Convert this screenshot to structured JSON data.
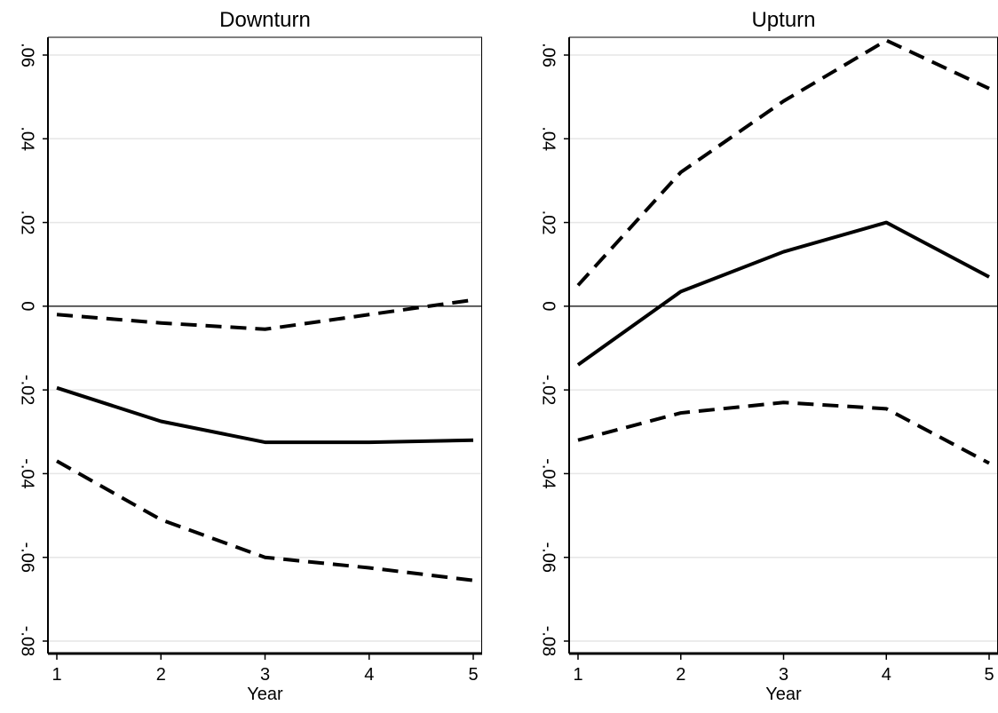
{
  "chart_data": [
    {
      "type": "line",
      "title": "Downturn",
      "xlabel": "",
      "ylabel": "",
      "x": [
        1,
        2,
        3,
        4,
        5
      ],
      "xlim": [
        1,
        5
      ],
      "ylim": [
        -0.08,
        0.06
      ],
      "x_ticks": [
        "1",
        "2",
        "3",
        "4",
        "5"
      ],
      "y_ticks": [
        -0.08,
        -0.06,
        -0.04,
        -0.02,
        0,
        0.02,
        0.04,
        0.06
      ],
      "y_tick_labels": [
        "-.08",
        "-.06",
        "-.04",
        "-.02",
        "0",
        ".02",
        ".04",
        ".06"
      ],
      "grid": true,
      "zero_line": true,
      "series": [
        {
          "role": "upper",
          "style": "dashed",
          "values": [
            -0.002,
            -0.004,
            -0.0055,
            -0.002,
            0.0015
          ]
        },
        {
          "role": "estimate",
          "style": "solid",
          "values": [
            -0.0195,
            -0.0275,
            -0.0325,
            -0.0325,
            -0.032
          ]
        },
        {
          "role": "lower",
          "style": "dashed",
          "values": [
            -0.037,
            -0.051,
            -0.06,
            -0.0625,
            -0.0655
          ]
        }
      ]
    },
    {
      "type": "line",
      "title": "Upturn",
      "xlabel": "Year",
      "ylabel": "",
      "x": [
        1,
        2,
        3,
        4,
        5
      ],
      "xlim": [
        1,
        5
      ],
      "ylim": [
        -0.08,
        0.06
      ],
      "x_ticks": [
        "1",
        "2",
        "3",
        "4",
        "5"
      ],
      "y_ticks": [
        -0.08,
        -0.06,
        -0.04,
        -0.02,
        0,
        0.02,
        0.04,
        0.06
      ],
      "y_tick_labels": [
        "-.08",
        "-.06",
        "-.04",
        "-.02",
        "0",
        ".02",
        ".04",
        ".06"
      ],
      "grid": true,
      "zero_line": true,
      "series": [
        {
          "role": "upper",
          "style": "dashed",
          "values": [
            0.005,
            0.032,
            0.049,
            0.0635,
            0.052
          ]
        },
        {
          "role": "estimate",
          "style": "solid",
          "values": [
            -0.014,
            0.0035,
            0.013,
            0.02,
            0.007
          ]
        },
        {
          "role": "lower",
          "style": "dashed",
          "values": [
            -0.032,
            -0.0255,
            -0.023,
            -0.0245,
            -0.0375
          ]
        }
      ]
    }
  ],
  "footer": {
    "left_xlabel": "Year"
  },
  "colors": {
    "line": "#000000",
    "grid": "#e6e6e6",
    "zero_line": "#000000",
    "frame": "#000000",
    "background": "#ffffff"
  }
}
